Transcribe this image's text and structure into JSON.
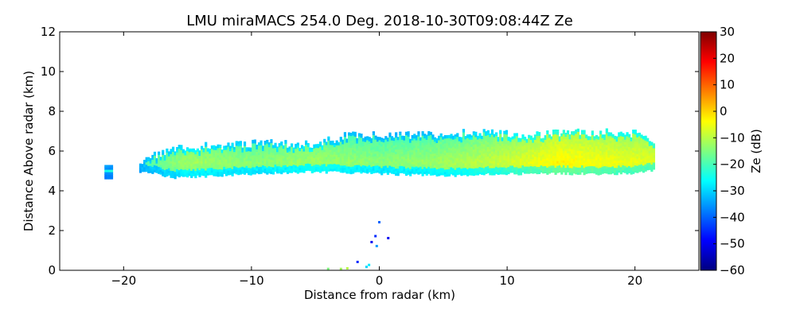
{
  "chart_data": {
    "type": "heatmap",
    "title": "LMU miraMACS 254.0 Deg. 2018-10-30T09:08:44Z  Ze",
    "xlabel": "Distance from radar (km)",
    "ylabel": "Distance Above radar  (km)",
    "xlim": [
      -25,
      25
    ],
    "ylim": [
      0,
      12
    ],
    "xticks": [
      -20,
      -10,
      0,
      10,
      20
    ],
    "xtick_labels": [
      "−20",
      "−10",
      "0",
      "10",
      "20"
    ],
    "yticks": [
      0,
      2,
      4,
      6,
      8,
      10,
      12
    ],
    "ytick_labels": [
      "0",
      "2",
      "4",
      "6",
      "8",
      "10",
      "12"
    ],
    "colorbar": {
      "label": "Ze (dB)",
      "range": [
        -60,
        30
      ],
      "ticks": [
        30,
        20,
        10,
        0,
        -10,
        -20,
        -30,
        -40,
        -50,
        -60
      ],
      "tick_labels": [
        "30",
        "20",
        "10",
        "0",
        "−10",
        "−20",
        "−30",
        "−40",
        "−50",
        "−60"
      ],
      "colormap": "jet",
      "stops": [
        "#00007f",
        "#0000ff",
        "#007fff",
        "#00ffff",
        "#7fff7f",
        "#ffff00",
        "#ff7f00",
        "#ff0000",
        "#7f0000"
      ]
    },
    "cloud_layer": {
      "x_range_km": [
        -21.5,
        21.5
      ],
      "base_km_profile": [
        [
          -21.3,
          4.6
        ],
        [
          -18.5,
          4.9
        ],
        [
          -16,
          4.6
        ],
        [
          -10,
          4.8
        ],
        [
          -5,
          4.9
        ],
        [
          0,
          4.8
        ],
        [
          5,
          4.7
        ],
        [
          10,
          4.8
        ],
        [
          15,
          4.8
        ],
        [
          20,
          4.8
        ],
        [
          21.5,
          5.0
        ]
      ],
      "top_km_profile": [
        [
          -21.3,
          5.3
        ],
        [
          -18.5,
          5.8
        ],
        [
          -16,
          6.4
        ],
        [
          -10,
          6.6
        ],
        [
          -5,
          6.6
        ],
        [
          -2,
          7.1
        ],
        [
          0,
          7.0
        ],
        [
          5,
          7.1
        ],
        [
          8,
          7.2
        ],
        [
          12,
          7.0
        ],
        [
          15,
          7.2
        ],
        [
          20,
          7.1
        ],
        [
          21.5,
          6.5
        ]
      ],
      "ze_dB_profile": [
        [
          -20,
          -22
        ],
        [
          -15,
          -12
        ],
        [
          -10,
          -14
        ],
        [
          -5,
          -12
        ],
        [
          0,
          -14
        ],
        [
          5,
          -12
        ],
        [
          10,
          -8
        ],
        [
          14,
          -3
        ],
        [
          18,
          -5
        ],
        [
          21,
          -6
        ]
      ],
      "bright_core_height_km": 5.4
    },
    "speckles": [
      {
        "x": 0.0,
        "y": 2.4,
        "ze": -40
      },
      {
        "x": -0.3,
        "y": 1.7,
        "ze": -45
      },
      {
        "x": -0.6,
        "y": 1.4,
        "ze": -50
      },
      {
        "x": 0.7,
        "y": 1.6,
        "ze": -50
      },
      {
        "x": -0.2,
        "y": 1.2,
        "ze": -35
      },
      {
        "x": -1.7,
        "y": 0.4,
        "ze": -45
      },
      {
        "x": -1.0,
        "y": 0.15,
        "ze": -30
      },
      {
        "x": -3.0,
        "y": 0.05,
        "ze": -12
      },
      {
        "x": -2.5,
        "y": 0.08,
        "ze": -10
      },
      {
        "x": -4.0,
        "y": 0.05,
        "ze": -15
      },
      {
        "x": -0.8,
        "y": 0.25,
        "ze": -28
      }
    ]
  }
}
